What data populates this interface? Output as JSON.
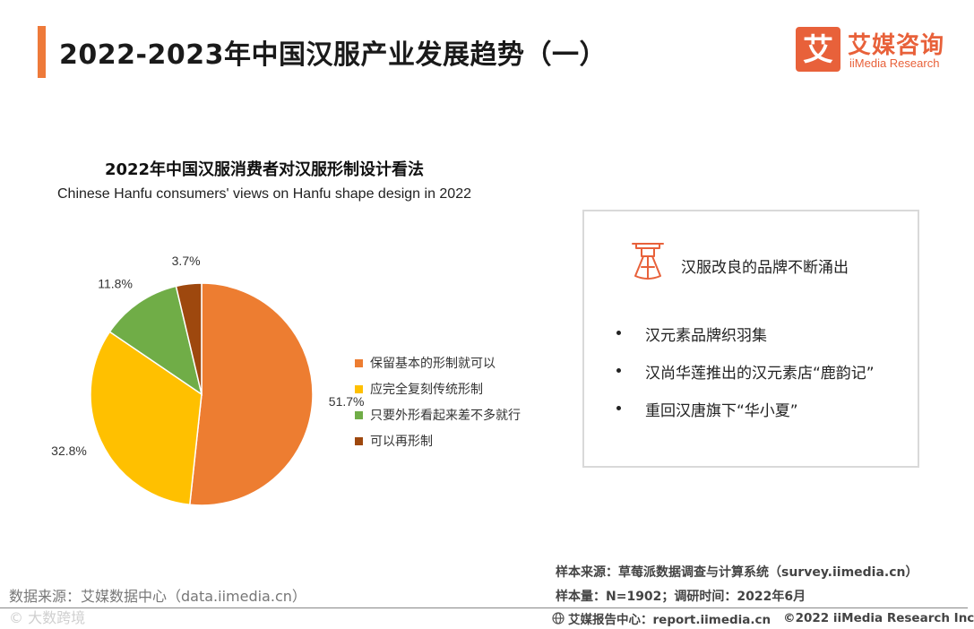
{
  "header": {
    "title": "2022-2023年中国汉服产业发展趋势（一）",
    "logo_cn": "艾媒咨询",
    "logo_en": "iiMedia Research",
    "logo_mark": "艾"
  },
  "chart_data": {
    "type": "pie",
    "title": "2022年中国汉服消费者对汉服形制设计看法",
    "subtitle": "Chinese Hanfu consumers' views on Hanfu shape design in 2022",
    "categories": [
      "保留基本的形制就可以",
      "应完全复刻传统形制",
      "只要外形看起来差不多就行",
      "可以再形制"
    ],
    "values": [
      51.7,
      32.8,
      11.8,
      3.7
    ],
    "value_labels": [
      "51.7%",
      "32.8%",
      "11.8%",
      "3.7%"
    ],
    "colors": [
      "#ed7d31",
      "#ffc000",
      "#70ad47",
      "#9e480e"
    ],
    "legend_position": "right"
  },
  "info_panel": {
    "heading": "汉服改良的品牌不断涌出",
    "icon": "hanfu-garment-icon",
    "items": [
      "汉元素品牌织羽集",
      "汉尚华莲推出的汉元素店“鹿韵记”",
      "重回汉唐旗下“华小夏”"
    ]
  },
  "footer": {
    "data_source": "数据来源：艾媒数据中心（data.iimedia.cn）",
    "watermark": "© 大数跨境",
    "sample_source": "样本来源：草莓派数据调查与计算系统（survey.iimedia.cn）",
    "sample_size": "样本量：N=1902；调研时间：2022年6月",
    "report_center": "艾媒报告中心：report.iimedia.cn",
    "copyright": "©2022  iiMedia Research  Inc"
  }
}
